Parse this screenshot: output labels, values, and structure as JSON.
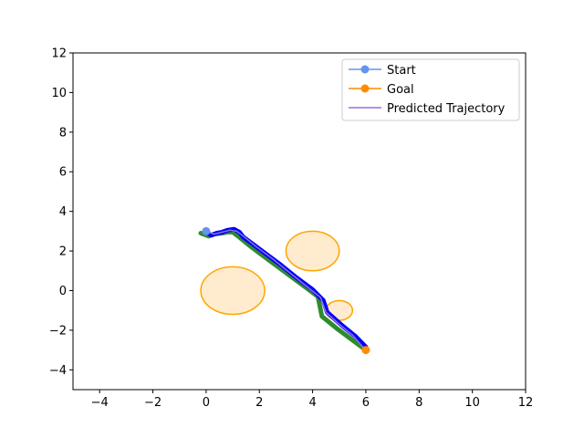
{
  "chart_data": {
    "type": "line",
    "title": "",
    "xlabel": "",
    "ylabel": "",
    "xlim": [
      -5,
      12
    ],
    "ylim": [
      -5,
      12
    ],
    "xticks": [
      -4,
      -2,
      0,
      2,
      4,
      6,
      8,
      10,
      12
    ],
    "yticks": [
      -4,
      -2,
      0,
      2,
      4,
      6,
      8,
      10,
      12
    ],
    "x_tick_labels": [
      "−4",
      "−2",
      "0",
      "2",
      "4",
      "6",
      "8",
      "10",
      "12"
    ],
    "y_tick_labels": [
      "−4",
      "−2",
      "0",
      "2",
      "4",
      "6",
      "8",
      "10",
      "12"
    ],
    "grid": false,
    "legend_position": "top-right",
    "legend": [
      {
        "label": "Start",
        "color": "#6495ed",
        "marker": "circle"
      },
      {
        "label": "Goal",
        "color": "#ff8c00",
        "marker": "circle"
      },
      {
        "label": "Predicted Trajectory",
        "color": "#9370db",
        "marker": "none"
      }
    ],
    "start": {
      "x": 0,
      "y": 3
    },
    "goal": {
      "x": 6,
      "y": -3
    },
    "obstacles": [
      {
        "cx": 1.0,
        "cy": 0.0,
        "r": 1.2
      },
      {
        "cx": 4.0,
        "cy": 2.0,
        "r": 1.0
      },
      {
        "cx": 5.0,
        "cy": -1.0,
        "r": 0.5
      }
    ],
    "obstacle_fill": "#ffebcd",
    "obstacle_edge": "#ffa500",
    "series": [
      {
        "color": "#2e8b2e",
        "points": [
          [
            -0.2,
            2.9
          ],
          [
            0.1,
            2.75
          ],
          [
            0.3,
            2.85
          ],
          [
            0.6,
            2.9
          ],
          [
            0.8,
            2.95
          ],
          [
            1.0,
            2.95
          ],
          [
            1.2,
            2.75
          ],
          [
            1.6,
            2.3
          ],
          [
            2.0,
            1.9
          ],
          [
            2.6,
            1.3
          ],
          [
            3.2,
            0.7
          ],
          [
            3.8,
            0.1
          ],
          [
            4.2,
            -0.3
          ],
          [
            4.35,
            -1.3
          ],
          [
            4.9,
            -1.9
          ],
          [
            5.4,
            -2.4
          ],
          [
            5.9,
            -2.9
          ]
        ]
      },
      {
        "color": "#0000ff",
        "points": [
          [
            0.0,
            2.95
          ],
          [
            0.2,
            2.8
          ],
          [
            0.4,
            2.9
          ],
          [
            0.6,
            2.95
          ],
          [
            0.8,
            3.05
          ],
          [
            1.05,
            3.1
          ],
          [
            1.25,
            2.95
          ],
          [
            1.4,
            2.7
          ],
          [
            1.8,
            2.3
          ],
          [
            2.2,
            1.9
          ],
          [
            2.8,
            1.3
          ],
          [
            3.4,
            0.65
          ],
          [
            4.0,
            0.05
          ],
          [
            4.4,
            -0.5
          ],
          [
            4.55,
            -1.1
          ],
          [
            5.1,
            -1.75
          ],
          [
            5.6,
            -2.3
          ],
          [
            6.0,
            -2.85
          ]
        ]
      },
      {
        "color": "#9370db",
        "points": [
          [
            0.0,
            3.0
          ],
          [
            0.3,
            2.85
          ],
          [
            0.6,
            2.95
          ],
          [
            0.9,
            3.05
          ],
          [
            1.15,
            3.0
          ],
          [
            1.35,
            2.8
          ],
          [
            1.9,
            2.2
          ],
          [
            2.5,
            1.6
          ],
          [
            3.1,
            0.95
          ],
          [
            3.7,
            0.3
          ],
          [
            4.3,
            -0.35
          ],
          [
            4.5,
            -1.1
          ],
          [
            5.0,
            -1.7
          ],
          [
            5.5,
            -2.25
          ],
          [
            5.95,
            -2.95
          ]
        ]
      }
    ],
    "start_marker_color": "#6495ed",
    "goal_marker_color": "#ff8c00"
  }
}
